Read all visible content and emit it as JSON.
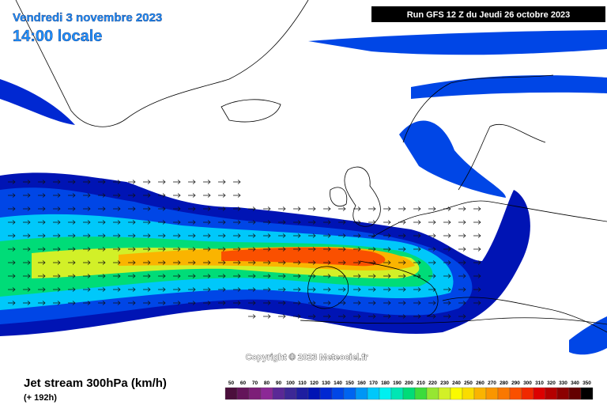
{
  "header": {
    "date": "Vendredi 3 novembre 2023",
    "time": "14:00 locale",
    "run": "Run GFS 12 Z du Jeudi 26 octobre 2023"
  },
  "copyright": "Copyright © 2023 Meteociel.fr",
  "footer": {
    "title": "Jet stream 300hPa (km/h)",
    "lead": "(+ 192h)"
  },
  "legend": [
    {
      "value": 50,
      "color": "#4b0f3c"
    },
    {
      "value": 60,
      "color": "#64145a"
    },
    {
      "value": 70,
      "color": "#7d1e78"
    },
    {
      "value": 80,
      "color": "#8c2896"
    },
    {
      "value": 90,
      "color": "#5a2896"
    },
    {
      "value": 100,
      "color": "#3c2896"
    },
    {
      "value": 110,
      "color": "#1e1ea0"
    },
    {
      "value": 120,
      "color": "#0014b4"
    },
    {
      "value": 130,
      "color": "#0028d2"
    },
    {
      "value": 140,
      "color": "#0046e6"
    },
    {
      "value": 150,
      "color": "#0064f0"
    },
    {
      "value": 160,
      "color": "#0096f5"
    },
    {
      "value": 170,
      "color": "#00c8fa"
    },
    {
      "value": 180,
      "color": "#00f0f0"
    },
    {
      "value": 190,
      "color": "#00e6b4"
    },
    {
      "value": 200,
      "color": "#00dc78"
    },
    {
      "value": 210,
      "color": "#3cdc3c"
    },
    {
      "value": 220,
      "color": "#96e632"
    },
    {
      "value": 230,
      "color": "#d2f028"
    },
    {
      "value": 240,
      "color": "#fafa00"
    },
    {
      "value": 250,
      "color": "#fadc00"
    },
    {
      "value": 260,
      "color": "#fab400"
    },
    {
      "value": 270,
      "color": "#fa9600"
    },
    {
      "value": 280,
      "color": "#fa7800"
    },
    {
      "value": 290,
      "color": "#fa5000"
    },
    {
      "value": 300,
      "color": "#f02800"
    },
    {
      "value": 310,
      "color": "#dc0000"
    },
    {
      "value": 320,
      "color": "#b40000"
    },
    {
      "value": 330,
      "color": "#8c0000"
    },
    {
      "value": 340,
      "color": "#640000"
    },
    {
      "value": 350,
      "color": "#000000"
    }
  ]
}
